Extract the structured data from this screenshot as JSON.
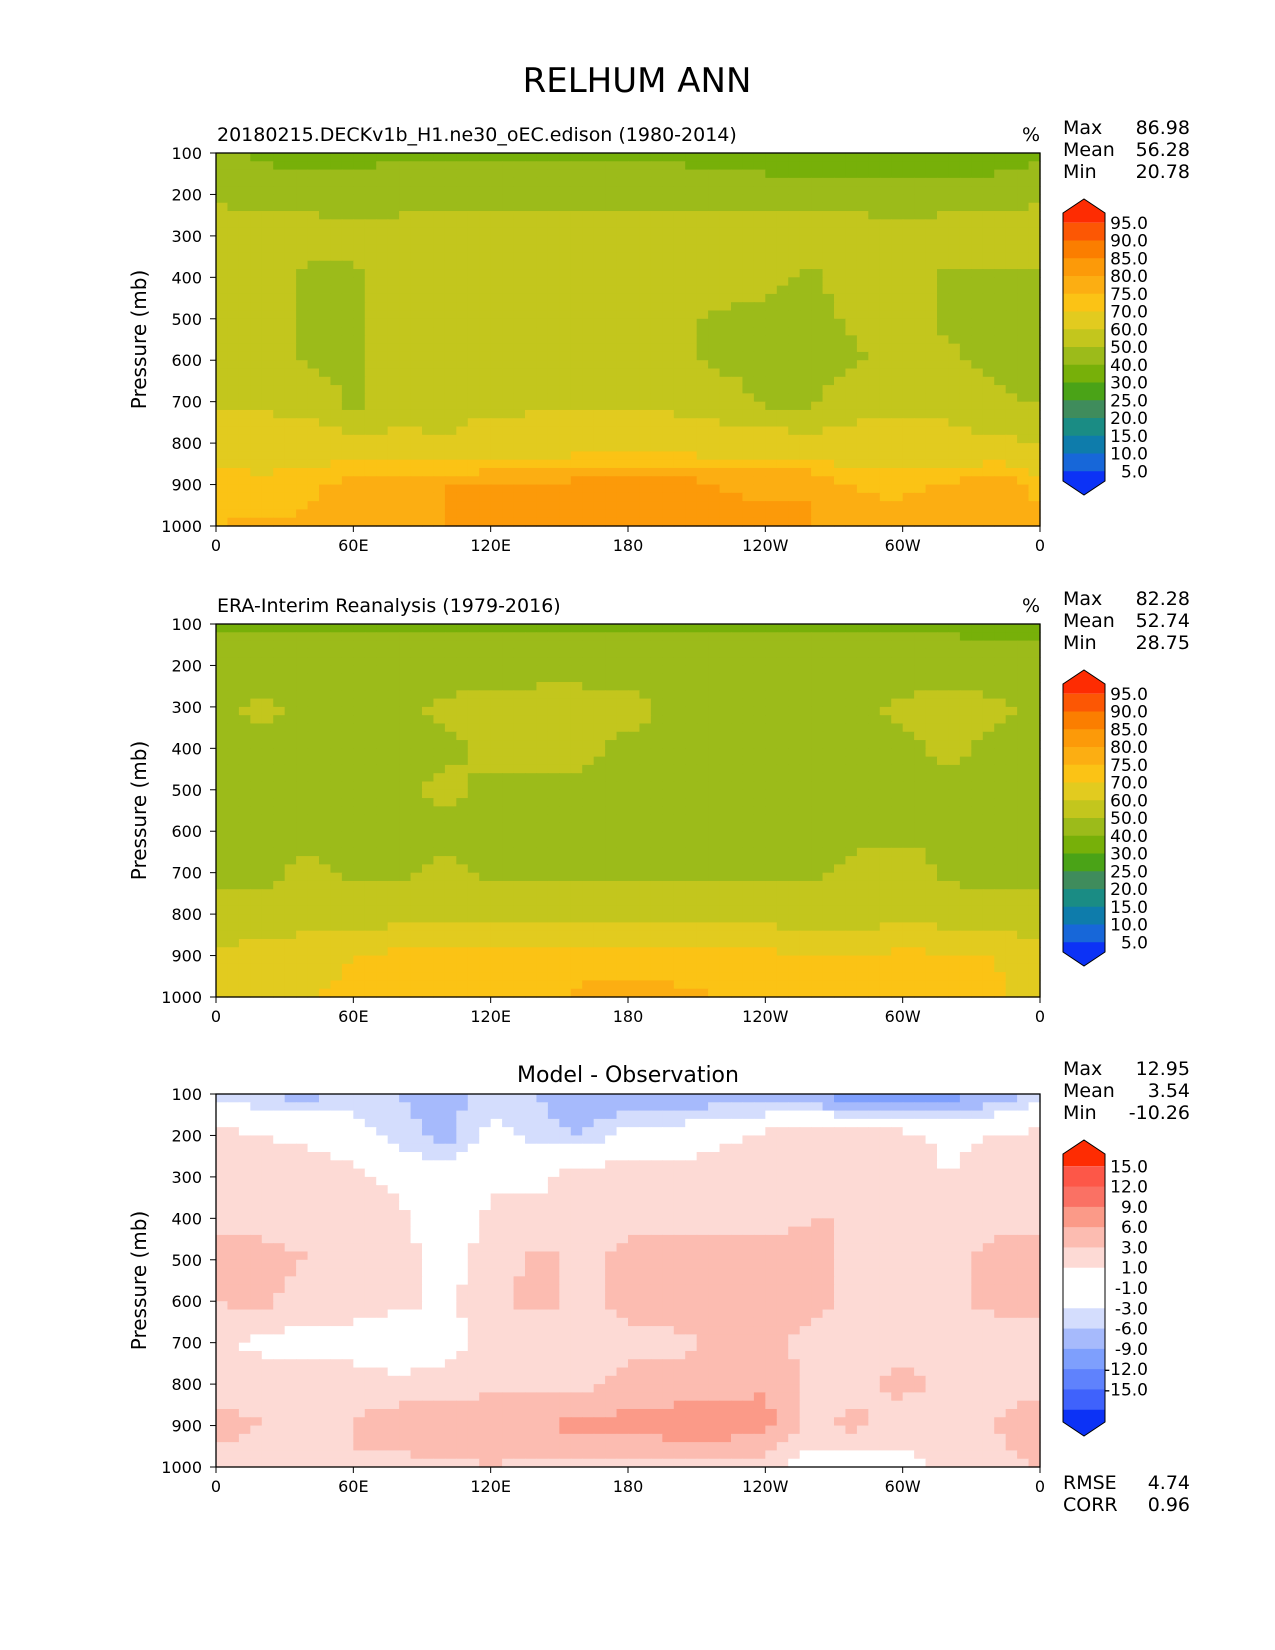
{
  "figure_title": "RELHUM ANN",
  "stat_labels": {
    "max": "Max",
    "mean": "Mean",
    "min": "Min",
    "rmse": "RMSE",
    "corr": "CORR"
  },
  "colors": {
    "abs_levels": [
      "#0c32f6",
      "#1767d9",
      "#0e7cab",
      "#1a8c84",
      "#3f8c5c",
      "#4aa317",
      "#77b009",
      "#9cbb1a",
      "#c3c61d",
      "#e2cb1f",
      "#fbc315",
      "#fcae12",
      "#fc9a09",
      "#fb7e00",
      "#fc5704",
      "#fe2c02"
    ],
    "diff_levels": [
      "#0c32f6",
      "#3f62fc",
      "#5f82fd",
      "#7e9ffd",
      "#a6bafc",
      "#d4ddfd",
      "#ffffff",
      "#ffffff",
      "#fddad5",
      "#fcbcb1",
      "#fb9a88",
      "#fa7164",
      "#fd5748",
      "#fe2c02"
    ]
  },
  "chart_data": [
    {
      "type": "heatmap",
      "panel": "test",
      "title": "20180215.DECKv1b_H1.ne30_oEC.edison (1980-2014)",
      "units": "%",
      "ylabel": "Pressure (mb)",
      "xlabel": "",
      "x_ticks": [
        "0",
        "60E",
        "120E",
        "180",
        "120W",
        "60W",
        "0"
      ],
      "y_ticks": [
        "100",
        "200",
        "300",
        "400",
        "500",
        "600",
        "700",
        "800",
        "900",
        "1000"
      ],
      "xlim": [
        0,
        360
      ],
      "ylim": [
        1000,
        100
      ],
      "stats": {
        "max": "86.98",
        "mean": "56.28",
        "min": "20.78"
      },
      "colorbar_levels": [
        "95.0",
        "90.0",
        "85.0",
        "80.0",
        "75.0",
        "70.0",
        "60.0",
        "50.0",
        "40.0",
        "30.0",
        "25.0",
        "20.0",
        "15.0",
        "10.0",
        "5.0"
      ],
      "lon": [
        0,
        20,
        40,
        60,
        80,
        100,
        120,
        140,
        160,
        180,
        200,
        220,
        240,
        260,
        280,
        300,
        320,
        340,
        360
      ],
      "pressure": [
        100,
        200,
        300,
        400,
        500,
        600,
        700,
        800,
        900,
        1000
      ],
      "values": [
        [
          40,
          39,
          34,
          37,
          39,
          38,
          38,
          39,
          39,
          38,
          38,
          34,
          34,
          33,
          31,
          31,
          32,
          34,
          38
        ],
        [
          48,
          46,
          46,
          45,
          45,
          46,
          46,
          46,
          46,
          46,
          46,
          46,
          46,
          45,
          46,
          46,
          46,
          46,
          48
        ],
        [
          56,
          55,
          55,
          52,
          55,
          55,
          56,
          56,
          56,
          56,
          56,
          56,
          55,
          55,
          55,
          52,
          55,
          56,
          56
        ],
        [
          57,
          57,
          48,
          48,
          57,
          57,
          57,
          58,
          58,
          58,
          57,
          57,
          53,
          48,
          55,
          57,
          48,
          48,
          49
        ],
        [
          50,
          57,
          48,
          47,
          57,
          57,
          58,
          58,
          58,
          58,
          52,
          48,
          47,
          47,
          52,
          57,
          47,
          47,
          49
        ],
        [
          50,
          58,
          48,
          47,
          57,
          58,
          58,
          58,
          58,
          58,
          52,
          48,
          47,
          46,
          48,
          58,
          52,
          47,
          49
        ],
        [
          58,
          58,
          58,
          47,
          57,
          58,
          58,
          58,
          58,
          58,
          58,
          55,
          48,
          48,
          58,
          56,
          58,
          52,
          49
        ],
        [
          66,
          65,
          64,
          64,
          62,
          60,
          64,
          65,
          65,
          65,
          65,
          65,
          66,
          64,
          63,
          65,
          62,
          62,
          60
        ],
        [
          72,
          72,
          73,
          78,
          79,
          80,
          80,
          80,
          82,
          85,
          84,
          80,
          79,
          80,
          74,
          73,
          76,
          79,
          73
        ],
        [
          75,
          76,
          76,
          79,
          80,
          80,
          80,
          81,
          82,
          82,
          82,
          81,
          81,
          80,
          78,
          79,
          80,
          79,
          76
        ]
      ]
    },
    {
      "type": "heatmap",
      "panel": "reference",
      "title": "ERA-Interim Reanalysis (1979-2016)",
      "units": "%",
      "ylabel": "Pressure (mb)",
      "xlabel": "",
      "x_ticks": [
        "0",
        "60E",
        "120E",
        "180",
        "120W",
        "60W",
        "0"
      ],
      "y_ticks": [
        "100",
        "200",
        "300",
        "400",
        "500",
        "600",
        "700",
        "800",
        "900",
        "1000"
      ],
      "xlim": [
        0,
        360
      ],
      "ylim": [
        1000,
        100
      ],
      "stats": {
        "max": "82.28",
        "mean": "52.74",
        "min": "28.75"
      },
      "colorbar_levels": [
        "95.0",
        "90.0",
        "85.0",
        "80.0",
        "75.0",
        "70.0",
        "60.0",
        "50.0",
        "40.0",
        "30.0",
        "25.0",
        "20.0",
        "15.0",
        "10.0",
        "5.0"
      ],
      "lon": [
        0,
        20,
        40,
        60,
        80,
        100,
        120,
        140,
        160,
        180,
        200,
        220,
        240,
        260,
        280,
        300,
        320,
        340,
        360
      ],
      "pressure": [
        100,
        200,
        300,
        400,
        500,
        600,
        700,
        800,
        900,
        1000
      ],
      "values": [
        [
          39,
          39,
          39,
          39,
          39,
          39,
          39,
          39,
          39,
          39,
          39,
          39,
          39,
          39,
          39,
          39,
          39,
          37,
          38
        ],
        [
          44,
          44,
          43,
          43,
          44,
          44,
          44,
          45,
          45,
          45,
          45,
          45,
          44,
          44,
          44,
          44,
          44,
          44,
          43
        ],
        [
          48,
          52,
          48,
          48,
          48,
          52,
          55,
          55,
          55,
          53,
          48,
          48,
          48,
          48,
          48,
          52,
          55,
          52,
          48
        ],
        [
          48,
          48,
          48,
          48,
          48,
          48,
          52,
          55,
          52,
          48,
          48,
          48,
          48,
          48,
          48,
          48,
          52,
          48,
          48
        ],
        [
          48,
          48,
          43,
          48,
          48,
          52,
          48,
          48,
          48,
          48,
          48,
          48,
          43,
          48,
          48,
          48,
          48,
          43,
          48
        ],
        [
          48,
          48,
          48,
          48,
          48,
          48,
          48,
          48,
          48,
          48,
          48,
          48,
          48,
          48,
          48,
          48,
          48,
          48,
          48
        ],
        [
          48,
          48,
          52,
          48,
          48,
          52,
          48,
          48,
          48,
          48,
          48,
          48,
          48,
          48,
          52,
          55,
          48,
          48,
          48
        ],
        [
          52,
          53,
          55,
          55,
          55,
          55,
          56,
          56,
          56,
          56,
          56,
          56,
          55,
          55,
          55,
          56,
          55,
          53,
          52
        ],
        [
          62,
          64,
          66,
          70,
          72,
          72,
          72,
          72,
          73,
          73,
          73,
          72,
          72,
          71,
          70,
          72,
          71,
          70,
          65
        ],
        [
          66,
          68,
          70,
          72,
          72,
          72,
          72,
          73,
          76,
          76,
          76,
          75,
          72,
          72,
          72,
          72,
          72,
          72,
          65
        ]
      ]
    },
    {
      "type": "heatmap",
      "panel": "difference",
      "title": "Model - Observation",
      "units": "",
      "ylabel": "Pressure (mb)",
      "xlabel": "",
      "x_ticks": [
        "0",
        "60E",
        "120E",
        "180",
        "120W",
        "60W",
        "0"
      ],
      "y_ticks": [
        "100",
        "200",
        "300",
        "400",
        "500",
        "600",
        "700",
        "800",
        "900",
        "1000"
      ],
      "xlim": [
        0,
        360
      ],
      "ylim": [
        1000,
        100
      ],
      "stats": {
        "max": "12.95",
        "mean": "3.54",
        "min": "-10.26"
      },
      "metrics": {
        "rmse": "4.74",
        "corr": "0.96"
      },
      "colorbar_levels": [
        "15.0",
        "12.0",
        "9.0",
        "6.0",
        "3.0",
        "1.0",
        "-1.0",
        "-3.0",
        "-6.0",
        "-9.0",
        "-12.0",
        "-15.0"
      ],
      "lon": [
        0,
        20,
        40,
        60,
        80,
        100,
        120,
        140,
        160,
        180,
        200,
        220,
        240,
        260,
        280,
        300,
        320,
        340,
        360
      ],
      "pressure": [
        100,
        200,
        300,
        400,
        500,
        600,
        700,
        800,
        900,
        1000
      ],
      "values": [
        [
          -2,
          -3,
          -4,
          -2,
          -3,
          -4,
          -2,
          -3,
          -5,
          -5,
          -5,
          -5,
          -6,
          -6,
          -9,
          -8,
          -8,
          -5,
          -2
        ],
        [
          4,
          3,
          2,
          0,
          -2,
          -4,
          0,
          -2,
          -3,
          0,
          0,
          2,
          4,
          5,
          6,
          4,
          2,
          3,
          4
        ],
        [
          4,
          5,
          6,
          4,
          2,
          0,
          2,
          2,
          5,
          5,
          5,
          5,
          5,
          5,
          6,
          5,
          3,
          5,
          5
        ],
        [
          6,
          5,
          5,
          6,
          4,
          0,
          4,
          4,
          4,
          5,
          5,
          5,
          5,
          6,
          6,
          5,
          5,
          5,
          5
        ],
        [
          6,
          7,
          6,
          5,
          4,
          2,
          4,
          7,
          5,
          7,
          8,
          8,
          7,
          7,
          5,
          5,
          5,
          7,
          7
        ],
        [
          6,
          7,
          4,
          5,
          4,
          2,
          5,
          7,
          5,
          7,
          8,
          8,
          7,
          7,
          5,
          5,
          5,
          7,
          7
        ],
        [
          4,
          2,
          2,
          1,
          0,
          2,
          4,
          4,
          5,
          5,
          5,
          7,
          7,
          5,
          5,
          5,
          5,
          4,
          5
        ],
        [
          5,
          5,
          5,
          5,
          4,
          4,
          5,
          5,
          5,
          7,
          7,
          7,
          9,
          5,
          5,
          7,
          5,
          5,
          5
        ],
        [
          7,
          6,
          5,
          6,
          8,
          9,
          9,
          9,
          10,
          10,
          11,
          11,
          10,
          5,
          7,
          4,
          5,
          6,
          8
        ],
        [
          5,
          4,
          5,
          6,
          5,
          5,
          6,
          5,
          5,
          5,
          5,
          5,
          5,
          1,
          0,
          2,
          4,
          5,
          6
        ]
      ]
    }
  ]
}
